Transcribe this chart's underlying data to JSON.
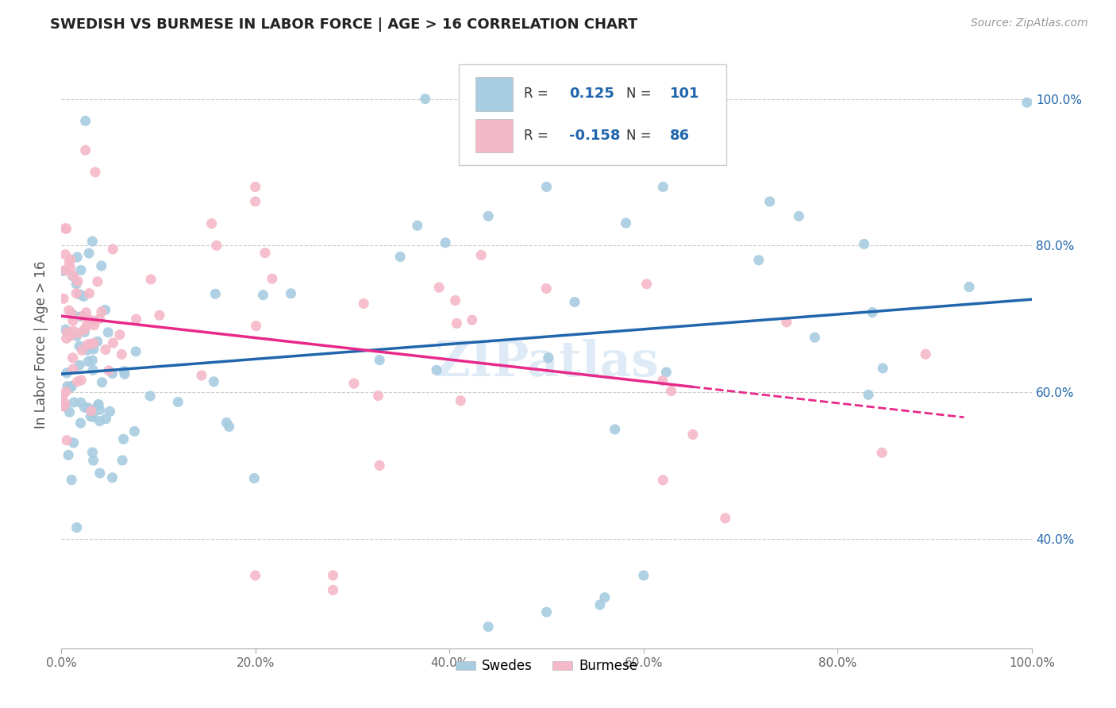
{
  "title": "SWEDISH VS BURMESE IN LABOR FORCE | AGE > 16 CORRELATION CHART",
  "source_text": "Source: ZipAtlas.com",
  "ylabel": "In Labor Force | Age > 16",
  "x_tick_labels": [
    "0.0%",
    "20.0%",
    "40.0%",
    "60.0%",
    "80.0%",
    "100.0%"
  ],
  "x_ticks": [
    0.0,
    0.2,
    0.4,
    0.6,
    0.8,
    1.0
  ],
  "y_ticks": [
    0.4,
    0.6,
    0.8,
    1.0
  ],
  "y_tick_labels_right": [
    "40.0%",
    "60.0%",
    "80.0%",
    "100.0%"
  ],
  "xlim": [
    0.0,
    1.0
  ],
  "ylim": [
    0.25,
    1.08
  ],
  "legend_label_swedes": "Swedes",
  "legend_label_burmese": "Burmese",
  "R_swedes": 0.125,
  "N_swedes": 101,
  "R_burmese": -0.158,
  "N_burmese": 86,
  "color_swedes": "#a8cce0",
  "color_burmese": "#f4b8c8",
  "color_trend_swedes": "#2166ac",
  "color_trend_burmese": "#e7298a",
  "tick_color_right": "#2166ac",
  "watermark": "ZIPatlas",
  "seed_swedes": 42,
  "seed_burmese": 99
}
